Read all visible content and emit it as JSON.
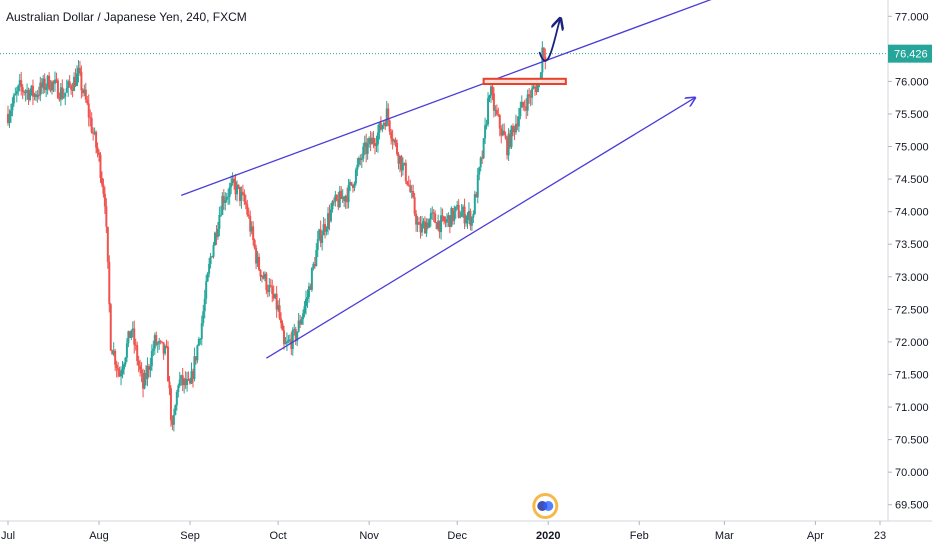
{
  "chart_data": {
    "type": "candlestick",
    "title": "Australian Dollar / Japanese Yen, 240, FXCM",
    "ylim": [
      69.25,
      77.25
    ],
    "y_ticks": [
      "69.500",
      "70.000",
      "70.500",
      "71.000",
      "71.500",
      "72.000",
      "72.500",
      "73.000",
      "73.500",
      "74.000",
      "74.500",
      "75.000",
      "75.500",
      "76.000",
      "76.500",
      "77.000"
    ],
    "x_ticks": [
      {
        "label": "Jul",
        "date": "2019-07-01"
      },
      {
        "label": "Aug",
        "date": "2019-08-01"
      },
      {
        "label": "Sep",
        "date": "2019-09-01"
      },
      {
        "label": "Oct",
        "date": "2019-10-01"
      },
      {
        "label": "Nov",
        "date": "2019-11-01"
      },
      {
        "label": "Dec",
        "date": "2019-12-01"
      },
      {
        "label": "2020",
        "date": "2020-01-01",
        "bold": true
      },
      {
        "label": "Feb",
        "date": "2020-02-01"
      },
      {
        "label": "Mar",
        "date": "2020-03-01"
      },
      {
        "label": "Apr",
        "date": "2020-04-01"
      },
      {
        "label": "23",
        "date": "2020-04-23"
      }
    ],
    "xlim": [
      "2019-07-01",
      "2020-04-23"
    ],
    "last_price": {
      "label": "76.426",
      "value": 76.426
    },
    "price_path": [
      [
        "2019-07-01",
        75.5
      ],
      [
        "2019-07-05",
        75.9
      ],
      [
        "2019-07-10",
        75.8
      ],
      [
        "2019-07-15",
        76.0
      ],
      [
        "2019-07-20",
        75.8
      ],
      [
        "2019-07-25",
        76.1
      ],
      [
        "2019-07-28",
        75.6
      ],
      [
        "2019-08-01",
        74.8
      ],
      [
        "2019-08-03",
        74.2
      ],
      [
        "2019-08-05",
        72.0
      ],
      [
        "2019-08-08",
        71.5
      ],
      [
        "2019-08-12",
        72.2
      ],
      [
        "2019-08-16",
        71.3
      ],
      [
        "2019-08-20",
        72.0
      ],
      [
        "2019-08-24",
        71.8
      ],
      [
        "2019-08-26",
        70.6
      ],
      [
        "2019-08-28",
        71.4
      ],
      [
        "2019-09-01",
        71.3
      ],
      [
        "2019-09-05",
        72.3
      ],
      [
        "2019-09-08",
        73.3
      ],
      [
        "2019-09-12",
        74.2
      ],
      [
        "2019-09-16",
        74.4
      ],
      [
        "2019-09-20",
        74.1
      ],
      [
        "2019-09-24",
        73.2
      ],
      [
        "2019-09-28",
        72.8
      ],
      [
        "2019-10-01",
        72.5
      ],
      [
        "2019-10-03",
        71.9
      ],
      [
        "2019-10-07",
        72.1
      ],
      [
        "2019-10-11",
        72.7
      ],
      [
        "2019-10-15",
        73.6
      ],
      [
        "2019-10-20",
        74.1
      ],
      [
        "2019-10-25",
        74.3
      ],
      [
        "2019-10-30",
        74.9
      ],
      [
        "2019-11-04",
        75.2
      ],
      [
        "2019-11-07",
        75.5
      ],
      [
        "2019-11-10",
        75.0
      ],
      [
        "2019-11-14",
        74.5
      ],
      [
        "2019-11-18",
        73.7
      ],
      [
        "2019-11-22",
        73.9
      ],
      [
        "2019-11-26",
        73.8
      ],
      [
        "2019-12-01",
        74.0
      ],
      [
        "2019-12-06",
        73.9
      ],
      [
        "2019-12-10",
        75.0
      ],
      [
        "2019-12-12",
        75.9
      ],
      [
        "2019-12-14",
        75.5
      ],
      [
        "2019-12-18",
        75.0
      ],
      [
        "2019-12-22",
        75.5
      ],
      [
        "2019-12-26",
        75.8
      ],
      [
        "2019-12-29",
        76.0
      ],
      [
        "2019-12-30",
        76.5
      ],
      [
        "2019-12-31",
        76.426
      ]
    ],
    "annotations": {
      "upper_channel": {
        "x1": "2019-08-29",
        "y1": 74.25,
        "x2": "2020-03-26",
        "y2": 77.75,
        "arrow": true
      },
      "lower_channel": {
        "x1": "2019-09-27",
        "y1": 71.75,
        "x2": "2020-02-20",
        "y2": 75.75,
        "arrow": true
      },
      "resistance_zone": {
        "x1": "2019-12-10",
        "x2": "2020-01-07",
        "y_low": 75.96,
        "y_high": 76.04
      },
      "projection_arrow": {
        "points": [
          [
            "2019-12-29",
            76.45
          ],
          [
            "2020-01-01",
            76.05
          ],
          [
            "2020-01-03",
            76.65
          ],
          [
            "2020-01-05",
            76.95
          ]
        ]
      }
    },
    "colors": {
      "up": "#26a69a",
      "down": "#ef5350",
      "channel": "#4a3dd9",
      "zone_border": "#e8412a",
      "zone_fill": "#fbe0dc",
      "projection": "#1a237e",
      "last_price_line": "#26a69a"
    }
  }
}
